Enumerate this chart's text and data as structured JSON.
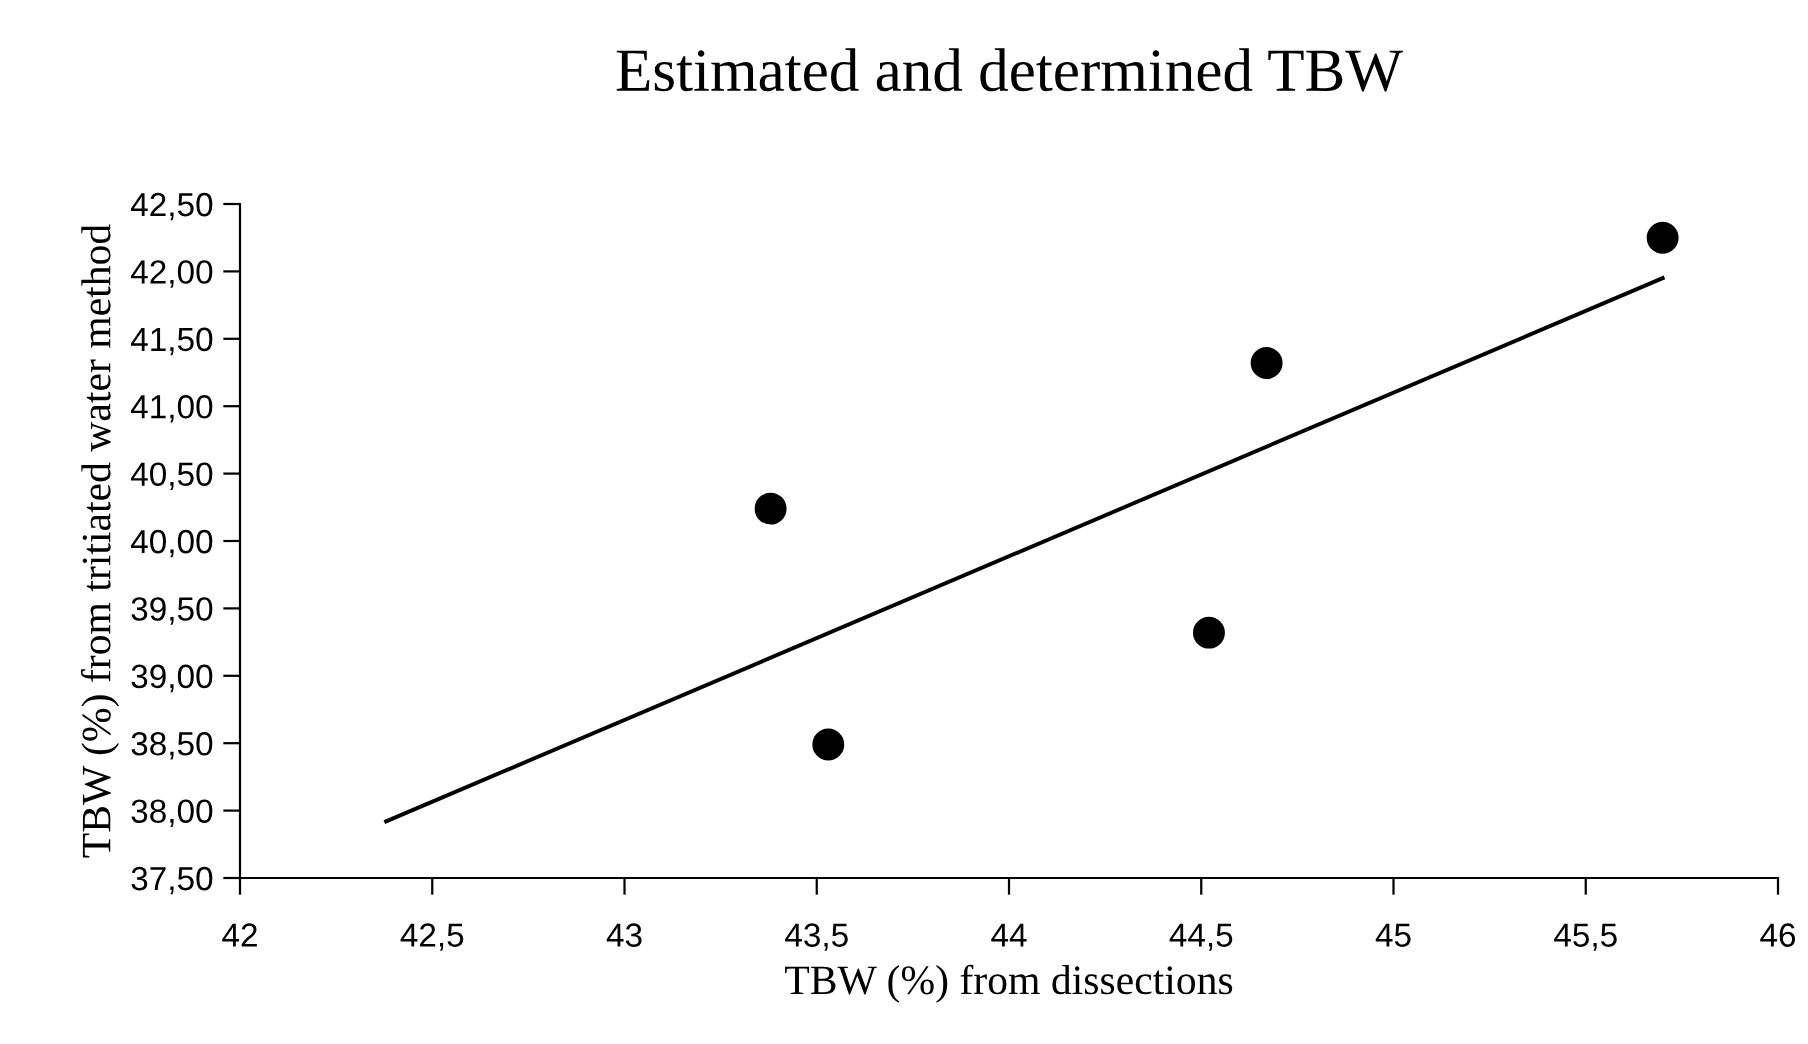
{
  "chart_data": {
    "type": "scatter",
    "title": "Estimated and determined TBW",
    "xlabel": "TBW (%) from dissections",
    "ylabel": "TBW (%) from tritiated water method",
    "series": [
      {
        "color": "#000000",
        "marker": "circle",
        "x": [
          43.38,
          43.53,
          44.52,
          44.67,
          45.7
        ],
        "values": [
          40.24,
          38.49,
          39.32,
          41.32,
          42.25
        ]
      },
      {
        "type": "line",
        "color": "#000000",
        "marker": "none",
        "line_style": "solid",
        "x": [
          42.38,
          45.7
        ],
        "values": [
          37.92,
          41.95
        ]
      }
    ],
    "xlim": [
      42,
      46
    ],
    "xticks": [
      42,
      {
        "value": 42.5,
        "label": "42,5"
      },
      43,
      {
        "value": 43.5,
        "label": "43,5"
      },
      44,
      {
        "value": 44.5,
        "label": "44,5"
      },
      45,
      {
        "value": 45.5,
        "label": "45,5"
      },
      46
    ],
    "ylim": [
      37.5,
      42.5
    ],
    "yticks": [
      {
        "value": 37.5,
        "label": "37,50"
      },
      {
        "value": 38,
        "label": "38,00"
      },
      {
        "value": 38.5,
        "label": "38,50"
      },
      {
        "value": 39,
        "label": "39,00"
      },
      {
        "value": 39.5,
        "label": "39,50"
      },
      {
        "value": 40,
        "label": "40,00"
      },
      {
        "value": 40.5,
        "label": "40,50"
      },
      {
        "value": 41,
        "label": "41,00"
      },
      {
        "value": 41.5,
        "label": "41,50"
      },
      {
        "value": 42,
        "label": "42,00"
      },
      {
        "value": 42.5,
        "label": "42,50"
      }
    ],
    "grid": false,
    "legend": false
  }
}
